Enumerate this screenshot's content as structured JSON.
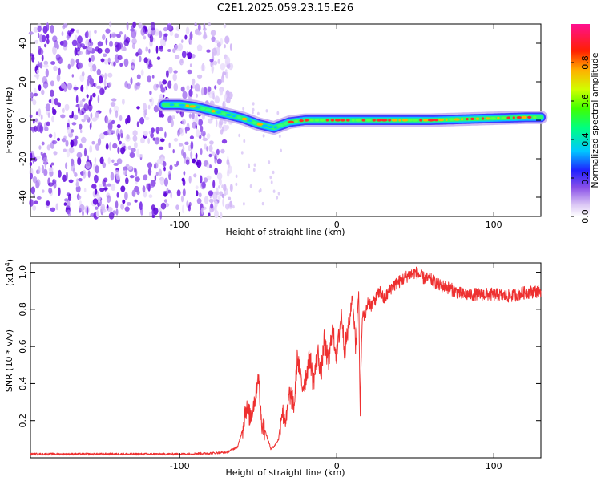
{
  "title": "C2E1.2025.059.23.15.E26",
  "chart_data": [
    {
      "type": "heatmap",
      "xlabel": "Height of straight line (km)",
      "ylabel": "Frequency (Hz)",
      "xlim": [
        -195,
        130
      ],
      "ylim": [
        -50,
        50
      ],
      "xticks": [
        -100,
        0,
        100
      ],
      "xtick_labels": [
        "-100",
        "0",
        "100"
      ],
      "yticks": [
        -40,
        -20,
        0,
        20,
        40
      ],
      "ytick_labels": [
        "-40",
        "-20",
        "0",
        "20",
        "40"
      ],
      "colorbar": {
        "label": "Normalized spectral amplitude",
        "range": [
          0,
          1
        ],
        "ticks": [
          0.0,
          0.2,
          0.4,
          0.6,
          0.8
        ],
        "tick_labels": [
          "0.0",
          "0.2",
          "0.4",
          "0.6",
          "0.8"
        ]
      },
      "noise_region_x": [
        -195,
        -75
      ],
      "ridge": {
        "x": [
          -110,
          -100,
          -90,
          -80,
          -70,
          -60,
          -50,
          -40,
          -30,
          -20,
          -10,
          0,
          20,
          40,
          60,
          80,
          100,
          120,
          130
        ],
        "y": [
          8,
          8,
          7,
          5,
          3,
          1,
          -2,
          -4,
          -1,
          0,
          0,
          0,
          0,
          0,
          0,
          0.5,
          1,
          1.5,
          1.5
        ]
      },
      "grid": false
    },
    {
      "type": "line",
      "xlabel": "Height of straight line (km)",
      "ylabel": "SNR (10 * v/v)",
      "scale_label": "(x10",
      "scale_exp": "4",
      "scale_close": ")",
      "xlim": [
        -195,
        130
      ],
      "ylim": [
        0,
        1.05
      ],
      "xticks": [
        -100,
        0,
        100
      ],
      "xtick_labels": [
        "-100",
        "0",
        "100"
      ],
      "yticks": [
        0.2,
        0.4,
        0.6,
        0.8,
        1.0
      ],
      "ytick_labels": [
        "0.2",
        "0.4",
        "0.6",
        "0.8",
        "1.0"
      ],
      "series": [
        {
          "color": "#ee3030",
          "x": [
            -195,
            -150,
            -100,
            -80,
            -70,
            -63,
            -60,
            -58,
            -55,
            -52,
            -50,
            -48,
            -45,
            -42,
            -40,
            -37,
            -35,
            -32,
            -30,
            -27,
            -25,
            -22,
            -20,
            -17,
            -15,
            -12,
            -10,
            -8,
            -5,
            -3,
            0,
            3,
            5,
            8,
            10,
            12,
            14,
            15,
            16,
            17,
            18,
            20,
            22,
            25,
            28,
            30,
            35,
            40,
            45,
            50,
            55,
            60,
            65,
            70,
            75,
            80,
            90,
            100,
            110,
            120,
            130
          ],
          "y": [
            0.02,
            0.02,
            0.02,
            0.025,
            0.03,
            0.06,
            0.15,
            0.27,
            0.22,
            0.32,
            0.45,
            0.2,
            0.13,
            0.05,
            0.06,
            0.1,
            0.25,
            0.2,
            0.35,
            0.28,
            0.55,
            0.38,
            0.42,
            0.55,
            0.4,
            0.57,
            0.45,
            0.63,
            0.5,
            0.7,
            0.55,
            0.78,
            0.58,
            0.72,
            0.88,
            0.6,
            0.9,
            0.25,
            0.68,
            0.8,
            0.75,
            0.85,
            0.82,
            0.86,
            0.9,
            0.85,
            0.92,
            0.95,
            0.98,
            1.0,
            0.97,
            0.96,
            0.93,
            0.92,
            0.9,
            0.88,
            0.88,
            0.88,
            0.87,
            0.89,
            0.9
          ]
        }
      ],
      "grid": false
    }
  ]
}
